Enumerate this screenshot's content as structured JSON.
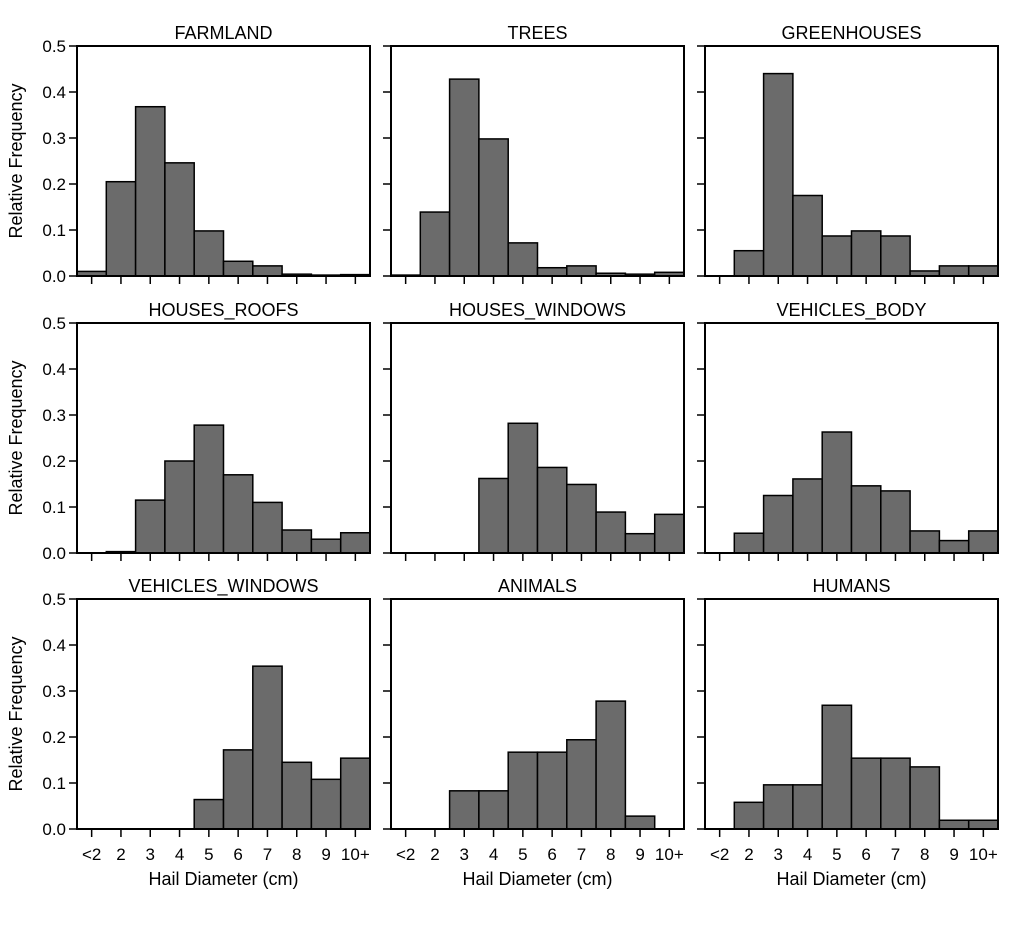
{
  "ylabel": "Relative Frequency",
  "xlabel": "Hail Diameter (cm)",
  "colors": {
    "bar": "#6b6b6b",
    "bar_stroke": "#000000",
    "axis": "#000000"
  },
  "chart_data": [
    {
      "type": "bar",
      "title": "FARMLAND",
      "categories": [
        "<2",
        "2",
        "3",
        "4",
        "5",
        "6",
        "7",
        "8",
        "9",
        "10+"
      ],
      "values": [
        0.01,
        0.205,
        0.368,
        0.246,
        0.098,
        0.032,
        0.022,
        0.004,
        0.002,
        0.003
      ],
      "ylim": [
        0,
        0.5
      ],
      "yticks": [
        "0.0",
        "0.1",
        "0.2",
        "0.3",
        "0.4",
        "0.5"
      ]
    },
    {
      "type": "bar",
      "title": "TREES",
      "categories": [
        "<2",
        "2",
        "3",
        "4",
        "5",
        "6",
        "7",
        "8",
        "9",
        "10+"
      ],
      "values": [
        0.002,
        0.139,
        0.428,
        0.298,
        0.072,
        0.018,
        0.022,
        0.006,
        0.004,
        0.008
      ],
      "ylim": [
        0,
        0.5
      ],
      "yticks": [
        "0.0",
        "0.1",
        "0.2",
        "0.3",
        "0.4",
        "0.5"
      ]
    },
    {
      "type": "bar",
      "title": "GREENHOUSES",
      "categories": [
        "<2",
        "2",
        "3",
        "4",
        "5",
        "6",
        "7",
        "8",
        "9",
        "10+"
      ],
      "values": [
        0.0,
        0.055,
        0.44,
        0.175,
        0.087,
        0.098,
        0.087,
        0.011,
        0.022,
        0.022
      ],
      "ylim": [
        0,
        0.5
      ],
      "yticks": [
        "0.0",
        "0.1",
        "0.2",
        "0.3",
        "0.4",
        "0.5"
      ]
    },
    {
      "type": "bar",
      "title": "HOUSES_ROOFS",
      "categories": [
        "<2",
        "2",
        "3",
        "4",
        "5",
        "6",
        "7",
        "8",
        "9",
        "10+"
      ],
      "values": [
        0.0,
        0.003,
        0.115,
        0.2,
        0.278,
        0.17,
        0.11,
        0.05,
        0.03,
        0.044
      ],
      "ylim": [
        0,
        0.5
      ],
      "yticks": [
        "0.0",
        "0.1",
        "0.2",
        "0.3",
        "0.4",
        "0.5"
      ]
    },
    {
      "type": "bar",
      "title": "HOUSES_WINDOWS",
      "categories": [
        "<2",
        "2",
        "3",
        "4",
        "5",
        "6",
        "7",
        "8",
        "9",
        "10+"
      ],
      "values": [
        0.0,
        0.0,
        0.0,
        0.162,
        0.282,
        0.186,
        0.149,
        0.089,
        0.042,
        0.084
      ],
      "ylim": [
        0,
        0.5
      ],
      "yticks": [
        "0.0",
        "0.1",
        "0.2",
        "0.3",
        "0.4",
        "0.5"
      ]
    },
    {
      "type": "bar",
      "title": "VEHICLES_BODY",
      "categories": [
        "<2",
        "2",
        "3",
        "4",
        "5",
        "6",
        "7",
        "8",
        "9",
        "10+"
      ],
      "values": [
        0.0,
        0.043,
        0.125,
        0.161,
        0.263,
        0.146,
        0.135,
        0.048,
        0.027,
        0.048
      ],
      "ylim": [
        0,
        0.5
      ],
      "yticks": [
        "0.0",
        "0.1",
        "0.2",
        "0.3",
        "0.4",
        "0.5"
      ]
    },
    {
      "type": "bar",
      "title": "VEHICLES_WINDOWS",
      "categories": [
        "<2",
        "2",
        "3",
        "4",
        "5",
        "6",
        "7",
        "8",
        "9",
        "10+"
      ],
      "values": [
        0.0,
        0.0,
        0.0,
        0.0,
        0.064,
        0.172,
        0.354,
        0.145,
        0.108,
        0.154
      ],
      "ylim": [
        0,
        0.5
      ],
      "yticks": [
        "0.0",
        "0.1",
        "0.2",
        "0.3",
        "0.4",
        "0.5"
      ]
    },
    {
      "type": "bar",
      "title": "ANIMALS",
      "categories": [
        "<2",
        "2",
        "3",
        "4",
        "5",
        "6",
        "7",
        "8",
        "9",
        "10+"
      ],
      "values": [
        0.0,
        0.0,
        0.083,
        0.083,
        0.167,
        0.167,
        0.194,
        0.278,
        0.028,
        0.0
      ],
      "ylim": [
        0,
        0.5
      ],
      "yticks": [
        "0.0",
        "0.1",
        "0.2",
        "0.3",
        "0.4",
        "0.5"
      ]
    },
    {
      "type": "bar",
      "title": "HUMANS",
      "categories": [
        "<2",
        "2",
        "3",
        "4",
        "5",
        "6",
        "7",
        "8",
        "9",
        "10+"
      ],
      "values": [
        0.0,
        0.058,
        0.096,
        0.096,
        0.269,
        0.154,
        0.154,
        0.135,
        0.019,
        0.019
      ],
      "ylim": [
        0,
        0.5
      ],
      "yticks": [
        "0.0",
        "0.1",
        "0.2",
        "0.3",
        "0.4",
        "0.5"
      ]
    }
  ]
}
